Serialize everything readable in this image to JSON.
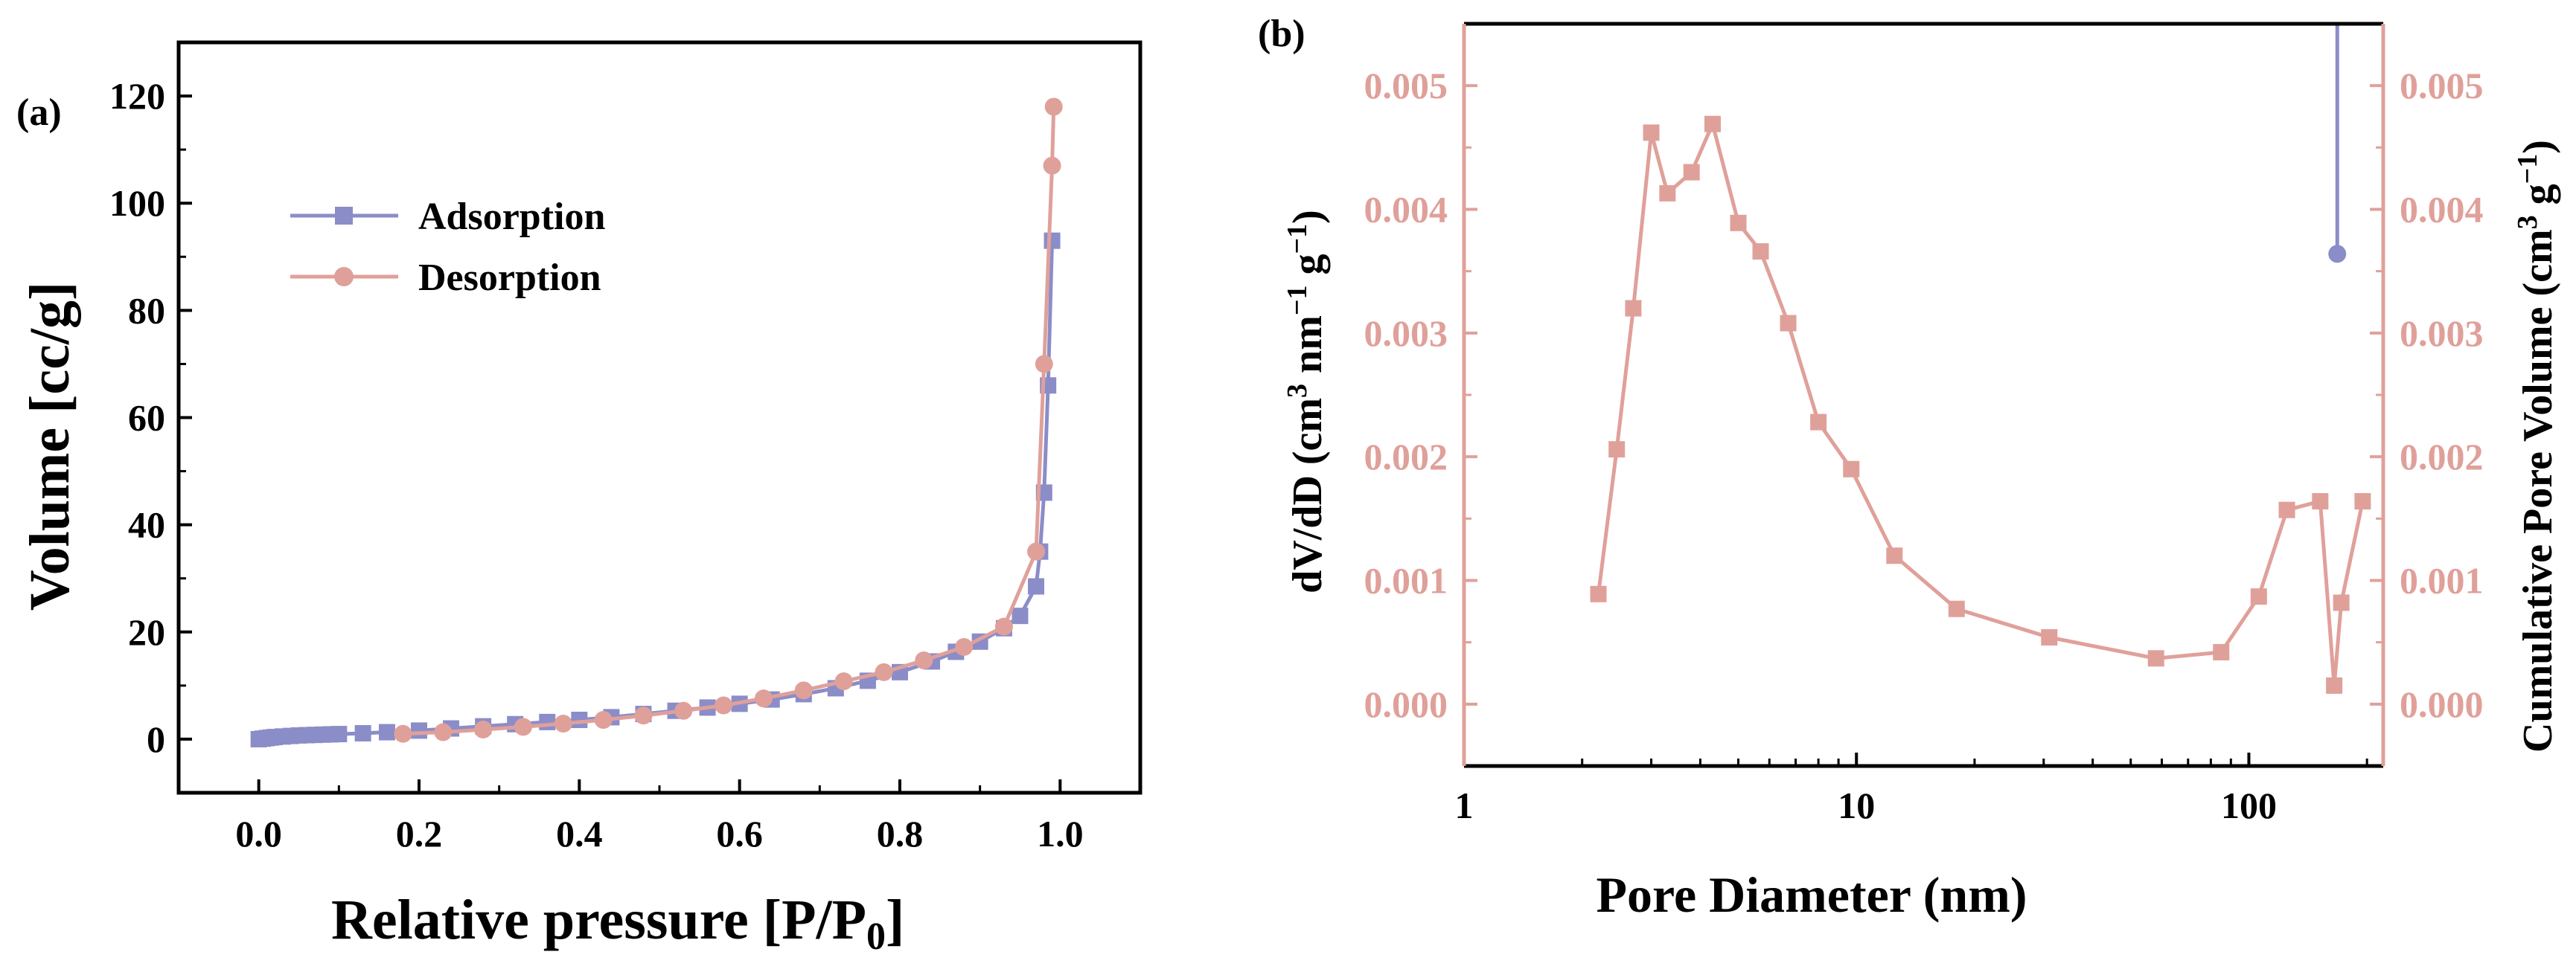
{
  "panels": {
    "a": {
      "label": "(a)"
    },
    "b": {
      "label": "(b)"
    }
  },
  "colors": {
    "adsorption": "#8B8DC8",
    "desorption": "#E0A09A",
    "pink_axis": "#E0A09A",
    "frame": "#000000"
  },
  "chart_data": [
    {
      "id": "a",
      "type": "line",
      "title": "",
      "xlabel": "Relative pressure [P/P",
      "xlabel_sub": "0",
      "xlabel_end": "]",
      "ylabel": "Volume [cc/g]",
      "xlim": [
        -0.1,
        1.1
      ],
      "ylim": [
        -10,
        130
      ],
      "xticks": [
        "0.0",
        "0.2",
        "0.4",
        "0.6",
        "0.8",
        "1.0"
      ],
      "yticks": [
        "0",
        "20",
        "40",
        "60",
        "80",
        "100",
        "120"
      ],
      "legend_position": "top-left",
      "series": [
        {
          "name": "Adsorption",
          "marker": "square",
          "color": "#8B8DC8",
          "x": [
            0.0,
            0.005,
            0.01,
            0.015,
            0.02,
            0.03,
            0.04,
            0.05,
            0.06,
            0.07,
            0.08,
            0.09,
            0.1,
            0.13,
            0.16,
            0.2,
            0.24,
            0.28,
            0.32,
            0.36,
            0.4,
            0.44,
            0.48,
            0.52,
            0.56,
            0.6,
            0.64,
            0.68,
            0.72,
            0.76,
            0.8,
            0.84,
            0.87,
            0.9,
            0.93,
            0.95,
            0.97,
            0.975,
            0.98,
            0.985,
            0.99
          ],
          "y": [
            0.0,
            0.1,
            0.2,
            0.3,
            0.4,
            0.5,
            0.6,
            0.7,
            0.75,
            0.8,
            0.85,
            0.9,
            0.95,
            1.1,
            1.3,
            1.6,
            2.0,
            2.4,
            2.8,
            3.2,
            3.6,
            4.1,
            4.7,
            5.3,
            5.9,
            6.6,
            7.4,
            8.4,
            9.5,
            10.9,
            12.5,
            14.5,
            16.3,
            18.2,
            20.7,
            23.0,
            28.5,
            35.0,
            46.0,
            66.0,
            93.0
          ]
        },
        {
          "name": "Desorption",
          "marker": "circle",
          "color": "#E0A09A",
          "x": [
            0.18,
            0.23,
            0.28,
            0.33,
            0.38,
            0.43,
            0.48,
            0.53,
            0.58,
            0.63,
            0.68,
            0.73,
            0.78,
            0.83,
            0.88,
            0.93,
            0.97,
            0.98,
            0.99,
            0.992
          ],
          "y": [
            1.0,
            1.3,
            1.8,
            2.3,
            2.9,
            3.6,
            4.4,
            5.3,
            6.3,
            7.6,
            9.1,
            10.8,
            12.5,
            14.7,
            17.2,
            21.0,
            35.0,
            70.0,
            107.0,
            118.0
          ]
        }
      ]
    },
    {
      "id": "b",
      "type": "line",
      "title": "",
      "xlabel": "Pore Diameter (nm)",
      "ylabel_left": "dV/dD (cm",
      "ylabel_left_units": [
        "3",
        " nm",
        "−1",
        " g",
        "−1",
        ")"
      ],
      "ylabel_right": "Cumulative Pore Volume (cm",
      "ylabel_right_units": [
        "3",
        " g",
        "−1",
        ")"
      ],
      "x_scale": "log",
      "xlim": [
        1,
        220
      ],
      "xticks": [
        "1",
        "10",
        "100"
      ],
      "ylim_left": [
        -0.0005,
        0.0055
      ],
      "ylim_right": [
        -0.0005,
        0.0055
      ],
      "yticks_left": [
        "0.000",
        "0.001",
        "0.002",
        "0.003",
        "0.004",
        "0.005"
      ],
      "yticks_right": [
        "0.000",
        "0.001",
        "0.002",
        "0.003",
        "0.004",
        "0.005"
      ],
      "series": [
        {
          "name": "",
          "axis": "left",
          "marker": "square",
          "color": "#E0A09A",
          "x": [
            2.2,
            2.45,
            2.7,
            3.0,
            3.3,
            3.8,
            4.3,
            5.0,
            5.7,
            6.7,
            8.0,
            9.7,
            12.5,
            18.0,
            31.0,
            58.0,
            85.0,
            106.0,
            125.0,
            152.0,
            165.0,
            172.0,
            195.0
          ],
          "y": [
            0.00089,
            0.00206,
            0.0032,
            0.00462,
            0.00413,
            0.0043,
            0.00469,
            0.00389,
            0.00366,
            0.00308,
            0.00228,
            0.0019,
            0.0012,
            0.00077,
            0.00054,
            0.00037,
            0.00042,
            0.00087,
            0.00157,
            0.00164,
            0.00015,
            0.00082,
            0.00164
          ]
        },
        {
          "name": "",
          "axis": "right",
          "marker": "circle",
          "color": "#8B8DC8",
          "x": [
            168.0,
            168.0
          ],
          "y": [
            0.00364,
            0.0056
          ]
        }
      ]
    }
  ]
}
